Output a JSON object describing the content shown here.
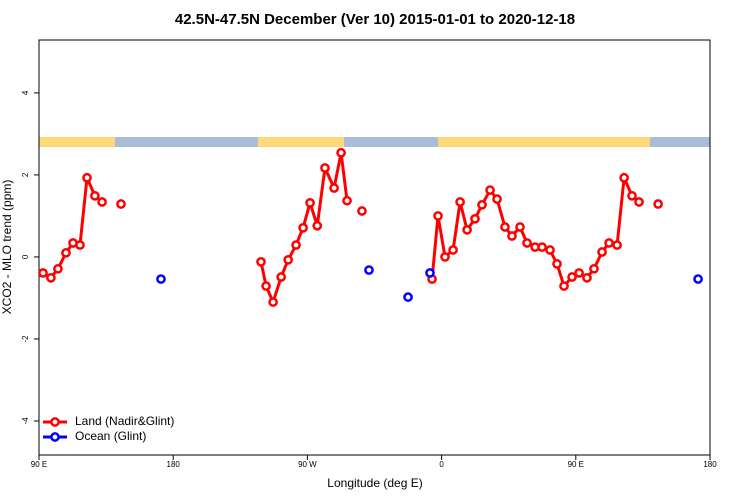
{
  "chart_data": {
    "type": "line",
    "title": "42.5N-47.5N December (Ver 10)   2015-01-01 to 2020-12-18",
    "xlabel": "Longitude (deg E)",
    "ylabel": "XCO2 - MLO trend (ppm)",
    "xlim": [
      90,
      540
    ],
    "ylim": [
      -4.83,
      5.29
    ],
    "xticks": [
      {
        "value": 90,
        "label": "90 E"
      },
      180,
      {
        "value": 270,
        "label": "90 W"
      },
      {
        "value": 360,
        "label": "0"
      },
      {
        "value": 450,
        "label": "90 E"
      },
      {
        "value": 540,
        "label": "180"
      }
    ],
    "yticks": [
      -4,
      -2,
      0,
      2,
      4
    ],
    "legend": "bottom-left",
    "series": [
      {
        "name": "Land (Nadir&Glint)",
        "color": "#ff0000",
        "line": true,
        "x": [
          92.7,
          98,
          102.7,
          108.1,
          112.8,
          117.5,
          122.2,
          127.5,
          132.3,
          null,
          145,
          null,
          238.9,
          242.3,
          247,
          252.4,
          257.1,
          262.4,
          267.1,
          271.8,
          276.6,
          281.8,
          287.9,
          292.6,
          296.6,
          null,
          306.6,
          null,
          353.6,
          357.6,
          362.3,
          367.7,
          372.4,
          377.1,
          382.4,
          387.1,
          392.5,
          397.2,
          402.5,
          407.2,
          412.6,
          417.3,
          422.7,
          427.4,
          432.7,
          437.4,
          442.1,
          447.5,
          452.2,
          457.5,
          462.2,
          467.6,
          472.3,
          477.7,
          482.4,
          487.7,
          492.4,
          null,
          505.2
        ],
        "values": [
          -0.39,
          -0.51,
          -0.29,
          0.1,
          0.34,
          0.29,
          1.93,
          1.49,
          1.34,
          null,
          1.29,
          null,
          -0.12,
          -0.71,
          -1.1,
          -0.49,
          -0.07,
          0.29,
          0.71,
          1.32,
          0.76,
          2.17,
          1.68,
          2.54,
          1.37,
          null,
          1.12,
          null,
          -0.54,
          1.0,
          0,
          0.17,
          1.34,
          0.66,
          0.93,
          1.27,
          1.63,
          1.41,
          0.73,
          0.51,
          0.73,
          0.34,
          0.24,
          0.24,
          0.17,
          -0.17,
          -0.71,
          -0.49,
          -0.39,
          -0.51,
          -0.29,
          0.12,
          0.34,
          0.29,
          1.93,
          1.49,
          1.34,
          null,
          1.29
        ]
      },
      {
        "name": "Ocean (Glint)",
        "color": "#0000ff",
        "line": false,
        "x": [
          171.8,
          311.3,
          337.5,
          352.2,
          532
        ],
        "values": [
          -0.54,
          -0.32,
          -0.98,
          -0.39,
          -0.54
        ]
      }
    ]
  }
}
